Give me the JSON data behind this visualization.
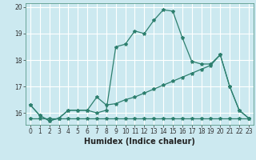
{
  "background_color": "#cce9f0",
  "grid_color": "#ffffff",
  "line_color": "#2d7f6e",
  "xlabel": "Humidex (Indice chaleur)",
  "ylim": [
    15.55,
    20.15
  ],
  "xlim": [
    -0.5,
    23.5
  ],
  "yticks": [
    16,
    17,
    18,
    19,
    20
  ],
  "xticks": [
    0,
    1,
    2,
    3,
    4,
    5,
    6,
    7,
    8,
    9,
    10,
    11,
    12,
    13,
    14,
    15,
    16,
    17,
    18,
    19,
    20,
    21,
    22,
    23
  ],
  "series": [
    {
      "x": [
        0,
        1,
        2,
        3,
        4,
        5,
        6,
        7,
        8,
        9,
        10,
        11,
        12,
        13,
        14,
        15,
        16,
        17,
        18,
        19,
        20,
        21,
        22,
        23
      ],
      "y": [
        16.3,
        15.9,
        15.7,
        15.8,
        16.1,
        16.1,
        16.1,
        16.0,
        16.1,
        18.5,
        18.6,
        19.1,
        19.0,
        19.5,
        19.9,
        19.85,
        18.85,
        17.95,
        17.85,
        17.85,
        18.2,
        17.0,
        16.1,
        15.8
      ]
    },
    {
      "x": [
        0,
        1,
        2,
        3,
        4,
        5,
        6,
        7,
        8,
        9,
        10,
        11,
        12,
        13,
        14,
        15,
        16,
        17,
        18,
        19,
        20,
        21,
        22,
        23
      ],
      "y": [
        16.3,
        15.9,
        15.7,
        15.8,
        16.1,
        16.1,
        16.1,
        16.6,
        16.3,
        16.35,
        16.5,
        16.6,
        16.75,
        16.9,
        17.05,
        17.2,
        17.35,
        17.5,
        17.65,
        17.8,
        18.2,
        17.0,
        16.1,
        15.8
      ]
    },
    {
      "x": [
        0,
        1,
        2,
        3,
        4,
        5,
        6,
        7,
        8,
        9,
        10,
        11,
        12,
        13,
        14,
        15,
        16,
        17,
        18,
        19,
        20,
        21,
        22,
        23
      ],
      "y": [
        15.8,
        15.8,
        15.8,
        15.8,
        15.8,
        15.8,
        15.8,
        15.8,
        15.8,
        15.8,
        15.8,
        15.8,
        15.8,
        15.8,
        15.8,
        15.8,
        15.8,
        15.8,
        15.8,
        15.8,
        15.8,
        15.8,
        15.8,
        15.8
      ]
    }
  ],
  "xlabel_fontsize": 7,
  "tick_fontsize": 5.5,
  "marker_size": 3,
  "line_width": 0.9
}
